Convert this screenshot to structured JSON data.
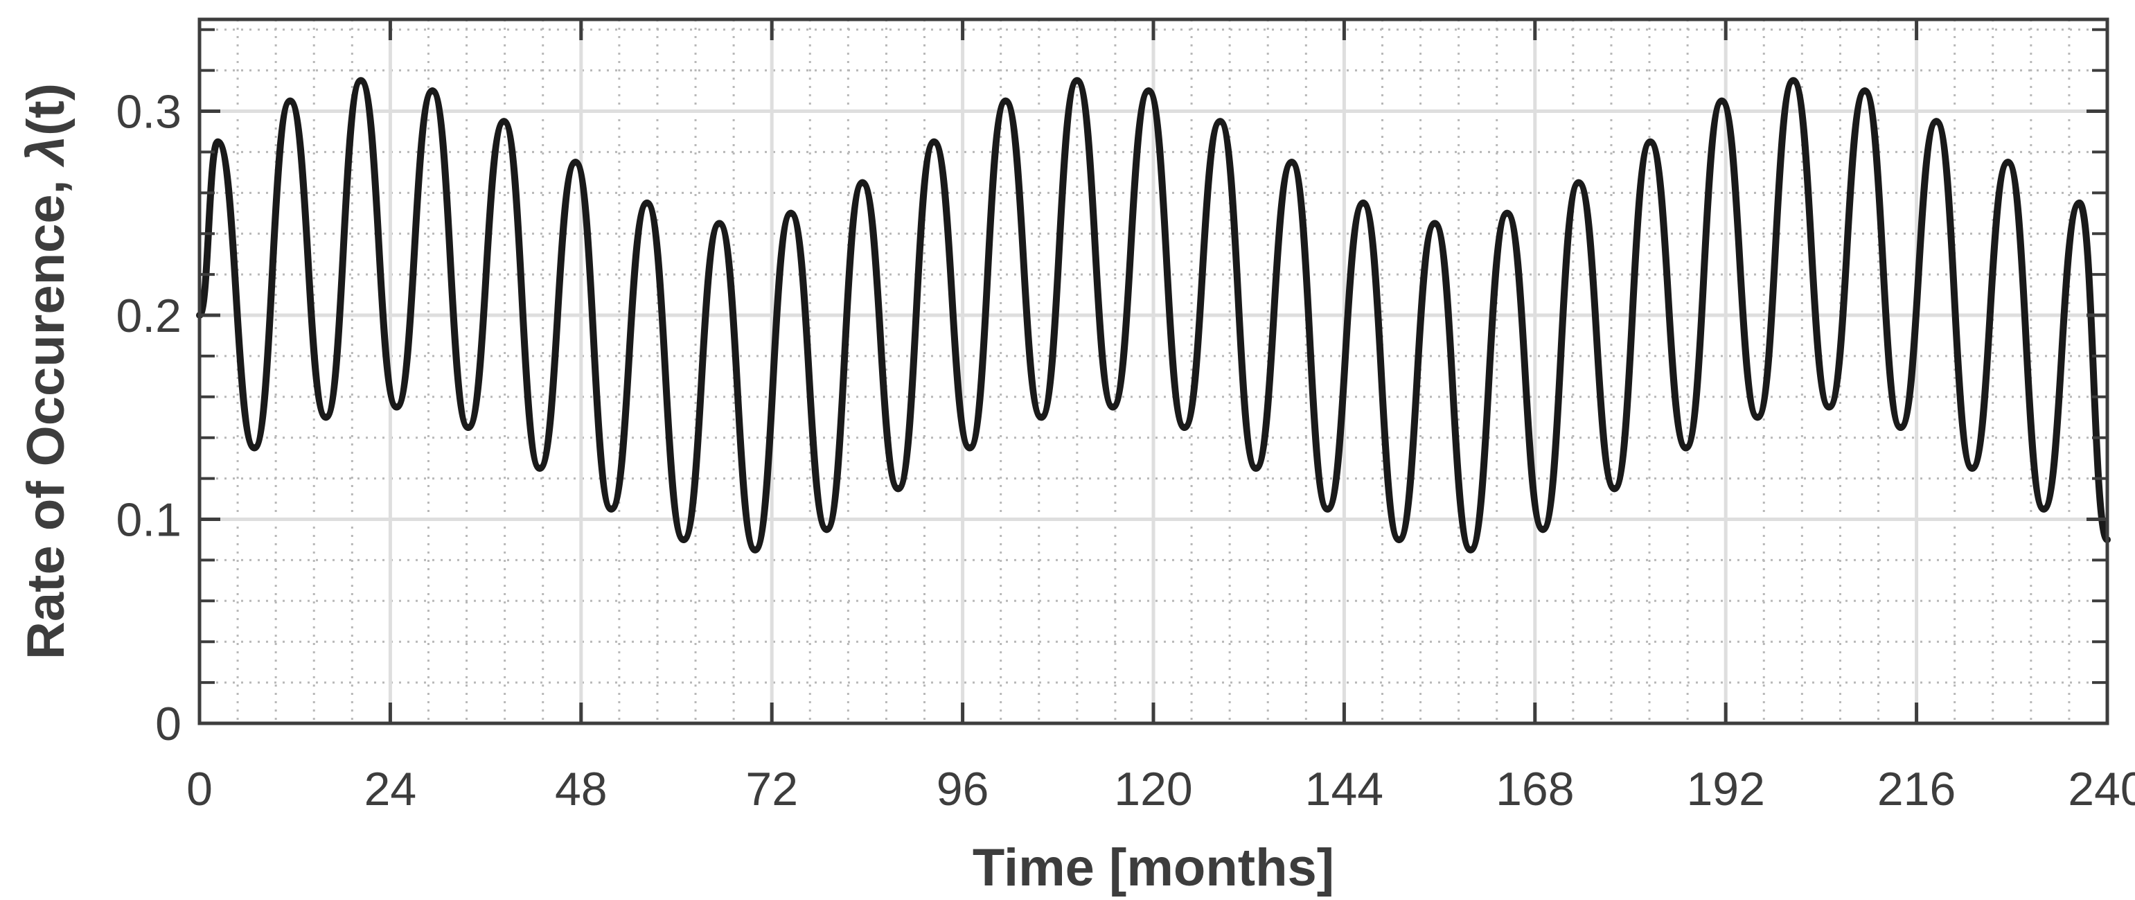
{
  "chart_data": {
    "type": "line",
    "xlabel": "Time [months]",
    "ylabel_text": "Rate of Occurence, ",
    "ylabel_symbol": "λ",
    "ylabel_suffix": "(t)",
    "xlim": [
      0,
      240
    ],
    "ylim": [
      0,
      0.345
    ],
    "xticks": [
      0,
      24,
      48,
      72,
      96,
      120,
      144,
      168,
      192,
      216,
      240
    ],
    "xtick_labels": [
      "0",
      "24",
      "48",
      "72",
      "96",
      "120",
      "144",
      "168",
      "192",
      "216",
      "240"
    ],
    "yticks": [
      0,
      0.1,
      0.2,
      0.3
    ],
    "ytick_labels": [
      "0",
      "0.1",
      "0.2",
      "0.3"
    ],
    "grid": "major solid, minor dotted",
    "legend": "none",
    "series": [
      {
        "color": "#1a1a1a",
        "x": [
          0,
          2.3,
          6.9,
          11.4,
          15.9,
          20.3,
          24.8,
          29.3,
          33.8,
          38.3,
          42.8,
          47.3,
          51.8,
          56.3,
          60.9,
          65.4,
          69.9,
          74.4,
          78.9,
          83.4,
          87.9,
          92.4,
          96.9,
          101.4,
          105.9,
          110.4,
          114.9,
          119.4,
          123.9,
          128.4,
          132.9,
          137.4,
          141.9,
          146.4,
          150.9,
          155.4,
          159.9,
          164.5,
          169.0,
          173.5,
          178.0,
          182.5,
          187.0,
          191.5,
          196.0,
          200.5,
          205.0,
          209.5,
          214.0,
          218.5,
          223.0,
          227.5,
          232.0,
          236.5,
          240
        ],
        "y": [
          0.2,
          0.285,
          0.135,
          0.305,
          0.15,
          0.315,
          0.155,
          0.31,
          0.145,
          0.295,
          0.125,
          0.275,
          0.105,
          0.255,
          0.09,
          0.245,
          0.085,
          0.25,
          0.095,
          0.265,
          0.115,
          0.285,
          0.135,
          0.305,
          0.15,
          0.315,
          0.155,
          0.31,
          0.145,
          0.295,
          0.125,
          0.275,
          0.105,
          0.255,
          0.09,
          0.245,
          0.085,
          0.25,
          0.095,
          0.265,
          0.115,
          0.285,
          0.135,
          0.305,
          0.15,
          0.315,
          0.155,
          0.31,
          0.145,
          0.295,
          0.125,
          0.275,
          0.105,
          0.255,
          0.09
        ]
      }
    ]
  }
}
